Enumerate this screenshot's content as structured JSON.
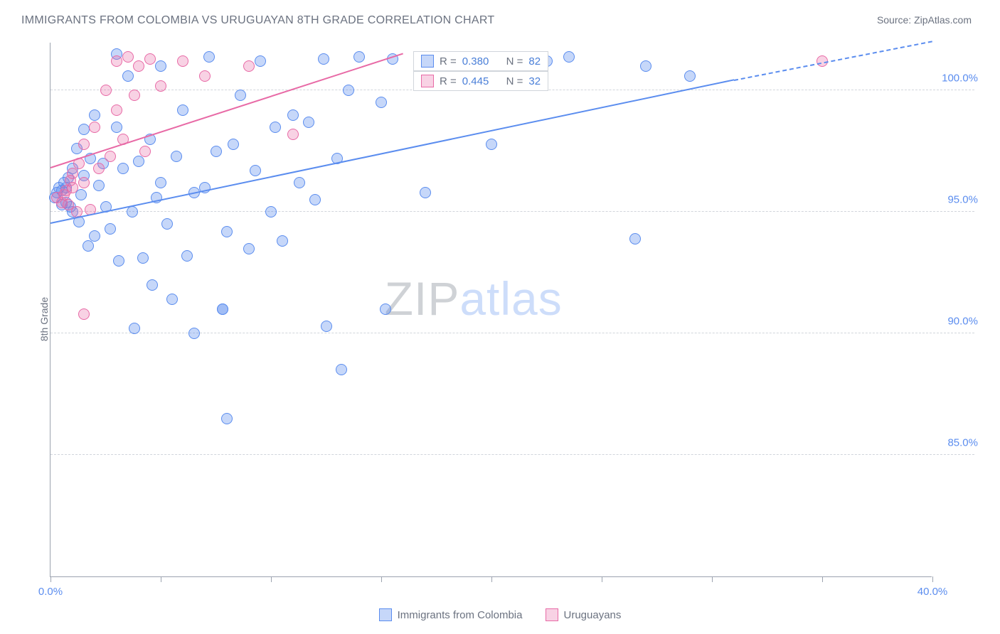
{
  "title": "IMMIGRANTS FROM COLOMBIA VS URUGUAYAN 8TH GRADE CORRELATION CHART",
  "source_label": "Source:",
  "source_name": "ZipAtlas.com",
  "y_axis_label": "8th Grade",
  "watermark_a": "ZIP",
  "watermark_b": "atlas",
  "chart": {
    "type": "scatter",
    "xlim": [
      0,
      40
    ],
    "ylim": [
      80,
      102
    ],
    "x_ticks": [
      0,
      5,
      10,
      15,
      20,
      25,
      30,
      35,
      40
    ],
    "x_tick_labels": {
      "0": "0.0%",
      "40": "40.0%"
    },
    "y_ticks": [
      85,
      90,
      95,
      100
    ],
    "y_tick_labels": {
      "85": "85.0%",
      "90": "90.0%",
      "95": "95.0%",
      "100": "100.0%"
    },
    "grid_color": "#d1d5db",
    "axis_color": "#9ca3af",
    "background_color": "#ffffff",
    "marker_radius": 8,
    "marker_opacity": 0.55,
    "series": [
      {
        "name": "Immigrants from Colombia",
        "color": "#5b8def",
        "fill": "rgba(91,141,239,0.35)",
        "stroke": "#5b8def",
        "R": "0.380",
        "N": "82",
        "trend": {
          "x1": 0,
          "y1": 94.5,
          "x2": 31,
          "y2": 100.4,
          "dash_from_x": 31,
          "dash_to_x": 40,
          "dash_to_y": 102
        },
        "points": [
          [
            0.2,
            95.6
          ],
          [
            0.3,
            95.8
          ],
          [
            0.4,
            96.0
          ],
          [
            0.5,
            95.9
          ],
          [
            0.5,
            95.3
          ],
          [
            0.6,
            96.2
          ],
          [
            0.7,
            96.0
          ],
          [
            0.7,
            95.4
          ],
          [
            0.8,
            96.4
          ],
          [
            0.9,
            95.2
          ],
          [
            1.0,
            96.8
          ],
          [
            1.0,
            95.0
          ],
          [
            1.2,
            97.6
          ],
          [
            1.3,
            94.6
          ],
          [
            1.4,
            95.7
          ],
          [
            1.5,
            96.5
          ],
          [
            1.5,
            98.4
          ],
          [
            1.7,
            93.6
          ],
          [
            1.8,
            97.2
          ],
          [
            2.0,
            99.0
          ],
          [
            2.0,
            94.0
          ],
          [
            2.2,
            96.1
          ],
          [
            2.4,
            97.0
          ],
          [
            2.5,
            95.2
          ],
          [
            2.7,
            94.3
          ],
          [
            3.0,
            98.5
          ],
          [
            3.0,
            101.5
          ],
          [
            3.1,
            93.0
          ],
          [
            3.3,
            96.8
          ],
          [
            3.5,
            100.6
          ],
          [
            3.7,
            95.0
          ],
          [
            3.8,
            90.2
          ],
          [
            4.0,
            97.1
          ],
          [
            4.2,
            93.1
          ],
          [
            4.5,
            98.0
          ],
          [
            4.6,
            92.0
          ],
          [
            4.8,
            95.6
          ],
          [
            5.0,
            101.0
          ],
          [
            5.0,
            96.2
          ],
          [
            5.3,
            94.5
          ],
          [
            5.5,
            91.4
          ],
          [
            5.7,
            97.3
          ],
          [
            6.0,
            99.2
          ],
          [
            6.2,
            93.2
          ],
          [
            6.5,
            95.8
          ],
          [
            6.5,
            90.0
          ],
          [
            7.0,
            96.0
          ],
          [
            7.2,
            101.4
          ],
          [
            7.5,
            97.5
          ],
          [
            7.8,
            91.0
          ],
          [
            7.8,
            91.0
          ],
          [
            8.0,
            86.5
          ],
          [
            8.0,
            94.2
          ],
          [
            8.3,
            97.8
          ],
          [
            8.6,
            99.8
          ],
          [
            9.0,
            93.5
          ],
          [
            9.3,
            96.7
          ],
          [
            9.5,
            101.2
          ],
          [
            10.0,
            95.0
          ],
          [
            10.2,
            98.5
          ],
          [
            10.5,
            93.8
          ],
          [
            11.0,
            99.0
          ],
          [
            11.3,
            96.2
          ],
          [
            11.7,
            98.7
          ],
          [
            12.0,
            95.5
          ],
          [
            12.4,
            101.3
          ],
          [
            12.5,
            90.3
          ],
          [
            13.0,
            97.2
          ],
          [
            13.2,
            88.5
          ],
          [
            13.5,
            100.0
          ],
          [
            14.0,
            101.4
          ],
          [
            15.0,
            99.5
          ],
          [
            15.2,
            91.0
          ],
          [
            15.5,
            101.3
          ],
          [
            17.0,
            95.8
          ],
          [
            18.0,
            101.4
          ],
          [
            20.0,
            97.8
          ],
          [
            22.5,
            101.2
          ],
          [
            23.5,
            101.4
          ],
          [
            26.5,
            93.9
          ],
          [
            27.0,
            101.0
          ],
          [
            29.0,
            100.6
          ]
        ]
      },
      {
        "name": "Uruguayans",
        "color": "#e86aa6",
        "fill": "rgba(232,106,166,0.30)",
        "stroke": "#e86aa6",
        "R": "0.445",
        "N": "32",
        "trend": {
          "x1": 0,
          "y1": 96.8,
          "x2": 16,
          "y2": 101.5
        },
        "points": [
          [
            0.3,
            95.6
          ],
          [
            0.5,
            95.4
          ],
          [
            0.6,
            95.7
          ],
          [
            0.7,
            95.9
          ],
          [
            0.8,
            95.3
          ],
          [
            0.9,
            96.3
          ],
          [
            1.0,
            96.0
          ],
          [
            1.0,
            96.6
          ],
          [
            1.2,
            95.0
          ],
          [
            1.3,
            97.0
          ],
          [
            1.5,
            96.2
          ],
          [
            1.5,
            97.8
          ],
          [
            1.8,
            95.1
          ],
          [
            2.0,
            98.5
          ],
          [
            1.5,
            90.8
          ],
          [
            2.2,
            96.8
          ],
          [
            2.5,
            100.0
          ],
          [
            2.7,
            97.3
          ],
          [
            3.0,
            99.2
          ],
          [
            3.0,
            101.2
          ],
          [
            3.3,
            98.0
          ],
          [
            3.5,
            101.4
          ],
          [
            3.8,
            99.8
          ],
          [
            4.0,
            101.0
          ],
          [
            4.3,
            97.5
          ],
          [
            4.5,
            101.3
          ],
          [
            5.0,
            100.2
          ],
          [
            6.0,
            101.2
          ],
          [
            7.0,
            100.6
          ],
          [
            9.0,
            101.0
          ],
          [
            11.0,
            98.2
          ],
          [
            35.0,
            101.2
          ]
        ]
      }
    ]
  },
  "stat_labels": {
    "R": "R =",
    "N": "N ="
  },
  "legend": {
    "series1": "Immigrants from Colombia",
    "series2": "Uruguayans"
  }
}
